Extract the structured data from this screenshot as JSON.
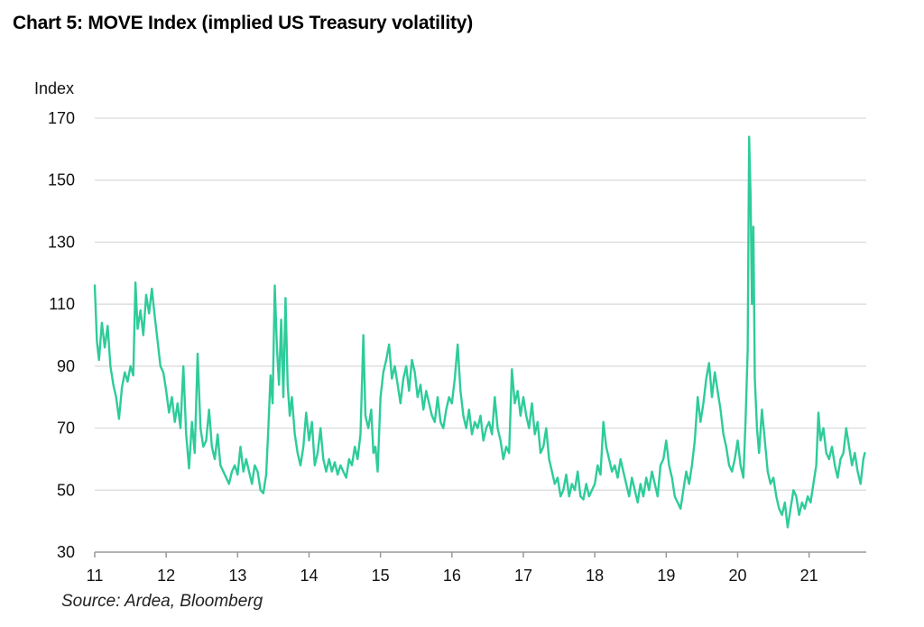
{
  "title": "Chart 5: MOVE Index (implied US Treasury volatility)",
  "source": "Source: Ardea, Bloomberg",
  "chart_data": {
    "type": "line",
    "title": "Chart 5: MOVE Index (implied US Treasury volatility)",
    "ylabel": "Index",
    "xlabel": "",
    "ylim": [
      30,
      170
    ],
    "yticks": [
      170,
      150,
      130,
      110,
      90,
      70,
      50,
      30
    ],
    "xlim": [
      2011.0,
      2021.8
    ],
    "xticks": [
      {
        "value": 2011,
        "label": "11"
      },
      {
        "value": 2012,
        "label": "12"
      },
      {
        "value": 2013,
        "label": "13"
      },
      {
        "value": 2014,
        "label": "14"
      },
      {
        "value": 2015,
        "label": "15"
      },
      {
        "value": 2016,
        "label": "16"
      },
      {
        "value": 2017,
        "label": "17"
      },
      {
        "value": 2018,
        "label": "18"
      },
      {
        "value": 2019,
        "label": "19"
      },
      {
        "value": 2020,
        "label": "20"
      },
      {
        "value": 2021,
        "label": "21"
      }
    ],
    "grid": "horizontal",
    "colors": {
      "line": "#2ecc9a",
      "grid": "#d9d9d9",
      "axis": "#999999"
    },
    "series": [
      {
        "values": [
          [
            2011.0,
            116
          ],
          [
            2011.03,
            98
          ],
          [
            2011.06,
            92
          ],
          [
            2011.1,
            104
          ],
          [
            2011.14,
            96
          ],
          [
            2011.18,
            103
          ],
          [
            2011.22,
            90
          ],
          [
            2011.26,
            84
          ],
          [
            2011.3,
            80
          ],
          [
            2011.34,
            73
          ],
          [
            2011.38,
            83
          ],
          [
            2011.42,
            88
          ],
          [
            2011.46,
            85
          ],
          [
            2011.5,
            90
          ],
          [
            2011.54,
            87
          ],
          [
            2011.57,
            117
          ],
          [
            2011.6,
            102
          ],
          [
            2011.64,
            108
          ],
          [
            2011.68,
            100
          ],
          [
            2011.72,
            113
          ],
          [
            2011.76,
            107
          ],
          [
            2011.8,
            115
          ],
          [
            2011.84,
            106
          ],
          [
            2011.88,
            98
          ],
          [
            2011.92,
            90
          ],
          [
            2011.96,
            88
          ],
          [
            2012.0,
            82
          ],
          [
            2012.04,
            75
          ],
          [
            2012.08,
            80
          ],
          [
            2012.12,
            72
          ],
          [
            2012.16,
            78
          ],
          [
            2012.2,
            70
          ],
          [
            2012.24,
            90
          ],
          [
            2012.28,
            68
          ],
          [
            2012.32,
            57
          ],
          [
            2012.36,
            72
          ],
          [
            2012.4,
            62
          ],
          [
            2012.44,
            94
          ],
          [
            2012.48,
            70
          ],
          [
            2012.52,
            64
          ],
          [
            2012.56,
            66
          ],
          [
            2012.6,
            76
          ],
          [
            2012.64,
            64
          ],
          [
            2012.68,
            60
          ],
          [
            2012.72,
            68
          ],
          [
            2012.76,
            58
          ],
          [
            2012.8,
            56
          ],
          [
            2012.84,
            54
          ],
          [
            2012.88,
            52
          ],
          [
            2012.92,
            56
          ],
          [
            2012.96,
            58
          ],
          [
            2013.0,
            55
          ],
          [
            2013.04,
            64
          ],
          [
            2013.08,
            56
          ],
          [
            2013.12,
            60
          ],
          [
            2013.16,
            56
          ],
          [
            2013.2,
            52
          ],
          [
            2013.24,
            58
          ],
          [
            2013.28,
            56
          ],
          [
            2013.32,
            50
          ],
          [
            2013.36,
            49
          ],
          [
            2013.4,
            55
          ],
          [
            2013.43,
            70
          ],
          [
            2013.46,
            87
          ],
          [
            2013.49,
            78
          ],
          [
            2013.52,
            116
          ],
          [
            2013.55,
            96
          ],
          [
            2013.58,
            84
          ],
          [
            2013.61,
            105
          ],
          [
            2013.64,
            80
          ],
          [
            2013.67,
            112
          ],
          [
            2013.7,
            84
          ],
          [
            2013.73,
            74
          ],
          [
            2013.76,
            80
          ],
          [
            2013.8,
            68
          ],
          [
            2013.84,
            62
          ],
          [
            2013.88,
            58
          ],
          [
            2013.92,
            64
          ],
          [
            2013.96,
            75
          ],
          [
            2014.0,
            66
          ],
          [
            2014.04,
            72
          ],
          [
            2014.08,
            58
          ],
          [
            2014.12,
            62
          ],
          [
            2014.16,
            70
          ],
          [
            2014.2,
            60
          ],
          [
            2014.24,
            56
          ],
          [
            2014.28,
            60
          ],
          [
            2014.32,
            56
          ],
          [
            2014.36,
            59
          ],
          [
            2014.4,
            55
          ],
          [
            2014.44,
            58
          ],
          [
            2014.48,
            56
          ],
          [
            2014.52,
            54
          ],
          [
            2014.56,
            60
          ],
          [
            2014.6,
            58
          ],
          [
            2014.64,
            64
          ],
          [
            2014.68,
            60
          ],
          [
            2014.72,
            68
          ],
          [
            2014.76,
            100
          ],
          [
            2014.79,
            74
          ],
          [
            2014.83,
            70
          ],
          [
            2014.87,
            76
          ],
          [
            2014.9,
            62
          ],
          [
            2014.93,
            64
          ],
          [
            2014.96,
            56
          ],
          [
            2015.0,
            80
          ],
          [
            2015.04,
            88
          ],
          [
            2015.08,
            92
          ],
          [
            2015.12,
            97
          ],
          [
            2015.16,
            86
          ],
          [
            2015.2,
            90
          ],
          [
            2015.24,
            84
          ],
          [
            2015.28,
            78
          ],
          [
            2015.32,
            86
          ],
          [
            2015.36,
            90
          ],
          [
            2015.4,
            82
          ],
          [
            2015.44,
            92
          ],
          [
            2015.48,
            88
          ],
          [
            2015.52,
            80
          ],
          [
            2015.56,
            84
          ],
          [
            2015.6,
            76
          ],
          [
            2015.64,
            82
          ],
          [
            2015.68,
            78
          ],
          [
            2015.72,
            74
          ],
          [
            2015.76,
            72
          ],
          [
            2015.8,
            80
          ],
          [
            2015.84,
            72
          ],
          [
            2015.88,
            70
          ],
          [
            2015.92,
            76
          ],
          [
            2015.96,
            80
          ],
          [
            2016.0,
            78
          ],
          [
            2016.04,
            86
          ],
          [
            2016.08,
            97
          ],
          [
            2016.12,
            82
          ],
          [
            2016.16,
            74
          ],
          [
            2016.2,
            70
          ],
          [
            2016.24,
            76
          ],
          [
            2016.28,
            68
          ],
          [
            2016.32,
            72
          ],
          [
            2016.36,
            70
          ],
          [
            2016.4,
            74
          ],
          [
            2016.44,
            66
          ],
          [
            2016.48,
            70
          ],
          [
            2016.52,
            72
          ],
          [
            2016.56,
            68
          ],
          [
            2016.6,
            80
          ],
          [
            2016.64,
            70
          ],
          [
            2016.68,
            66
          ],
          [
            2016.72,
            60
          ],
          [
            2016.76,
            64
          ],
          [
            2016.8,
            62
          ],
          [
            2016.84,
            89
          ],
          [
            2016.88,
            78
          ],
          [
            2016.92,
            82
          ],
          [
            2016.96,
            74
          ],
          [
            2017.0,
            80
          ],
          [
            2017.04,
            74
          ],
          [
            2017.08,
            70
          ],
          [
            2017.12,
            78
          ],
          [
            2017.16,
            68
          ],
          [
            2017.2,
            72
          ],
          [
            2017.24,
            62
          ],
          [
            2017.28,
            64
          ],
          [
            2017.32,
            70
          ],
          [
            2017.36,
            60
          ],
          [
            2017.4,
            56
          ],
          [
            2017.44,
            52
          ],
          [
            2017.48,
            54
          ],
          [
            2017.52,
            48
          ],
          [
            2017.56,
            50
          ],
          [
            2017.6,
            55
          ],
          [
            2017.64,
            48
          ],
          [
            2017.68,
            52
          ],
          [
            2017.72,
            50
          ],
          [
            2017.76,
            56
          ],
          [
            2017.8,
            48
          ],
          [
            2017.84,
            47
          ],
          [
            2017.88,
            52
          ],
          [
            2017.92,
            48
          ],
          [
            2017.96,
            50
          ],
          [
            2018.0,
            52
          ],
          [
            2018.04,
            58
          ],
          [
            2018.08,
            55
          ],
          [
            2018.12,
            72
          ],
          [
            2018.16,
            64
          ],
          [
            2018.2,
            60
          ],
          [
            2018.24,
            56
          ],
          [
            2018.28,
            58
          ],
          [
            2018.32,
            54
          ],
          [
            2018.36,
            60
          ],
          [
            2018.4,
            56
          ],
          [
            2018.44,
            52
          ],
          [
            2018.48,
            48
          ],
          [
            2018.52,
            54
          ],
          [
            2018.56,
            50
          ],
          [
            2018.6,
            46
          ],
          [
            2018.64,
            52
          ],
          [
            2018.68,
            48
          ],
          [
            2018.72,
            54
          ],
          [
            2018.76,
            50
          ],
          [
            2018.8,
            56
          ],
          [
            2018.84,
            52
          ],
          [
            2018.88,
            48
          ],
          [
            2018.92,
            58
          ],
          [
            2018.96,
            60
          ],
          [
            2019.0,
            66
          ],
          [
            2019.04,
            58
          ],
          [
            2019.08,
            54
          ],
          [
            2019.12,
            48
          ],
          [
            2019.16,
            46
          ],
          [
            2019.2,
            44
          ],
          [
            2019.24,
            50
          ],
          [
            2019.28,
            56
          ],
          [
            2019.32,
            52
          ],
          [
            2019.36,
            58
          ],
          [
            2019.4,
            66
          ],
          [
            2019.44,
            80
          ],
          [
            2019.48,
            72
          ],
          [
            2019.52,
            78
          ],
          [
            2019.56,
            86
          ],
          [
            2019.6,
            91
          ],
          [
            2019.64,
            80
          ],
          [
            2019.68,
            88
          ],
          [
            2019.72,
            82
          ],
          [
            2019.76,
            76
          ],
          [
            2019.8,
            68
          ],
          [
            2019.84,
            64
          ],
          [
            2019.88,
            58
          ],
          [
            2019.92,
            56
          ],
          [
            2019.96,
            60
          ],
          [
            2020.0,
            66
          ],
          [
            2020.04,
            58
          ],
          [
            2020.08,
            54
          ],
          [
            2020.11,
            72
          ],
          [
            2020.14,
            95
          ],
          [
            2020.16,
            164
          ],
          [
            2020.18,
            145
          ],
          [
            2020.2,
            110
          ],
          [
            2020.22,
            135
          ],
          [
            2020.24,
            86
          ],
          [
            2020.27,
            70
          ],
          [
            2020.3,
            62
          ],
          [
            2020.34,
            76
          ],
          [
            2020.38,
            66
          ],
          [
            2020.42,
            56
          ],
          [
            2020.46,
            52
          ],
          [
            2020.5,
            54
          ],
          [
            2020.54,
            48
          ],
          [
            2020.58,
            44
          ],
          [
            2020.62,
            42
          ],
          [
            2020.66,
            46
          ],
          [
            2020.7,
            38
          ],
          [
            2020.74,
            44
          ],
          [
            2020.78,
            50
          ],
          [
            2020.82,
            48
          ],
          [
            2020.86,
            42
          ],
          [
            2020.9,
            46
          ],
          [
            2020.94,
            44
          ],
          [
            2020.98,
            48
          ],
          [
            2021.02,
            46
          ],
          [
            2021.06,
            52
          ],
          [
            2021.1,
            58
          ],
          [
            2021.13,
            75
          ],
          [
            2021.16,
            66
          ],
          [
            2021.2,
            70
          ],
          [
            2021.24,
            62
          ],
          [
            2021.28,
            60
          ],
          [
            2021.32,
            64
          ],
          [
            2021.36,
            58
          ],
          [
            2021.4,
            54
          ],
          [
            2021.44,
            60
          ],
          [
            2021.48,
            62
          ],
          [
            2021.52,
            70
          ],
          [
            2021.56,
            64
          ],
          [
            2021.6,
            58
          ],
          [
            2021.64,
            62
          ],
          [
            2021.68,
            56
          ],
          [
            2021.72,
            52
          ],
          [
            2021.76,
            60
          ],
          [
            2021.78,
            62
          ]
        ]
      }
    ]
  }
}
